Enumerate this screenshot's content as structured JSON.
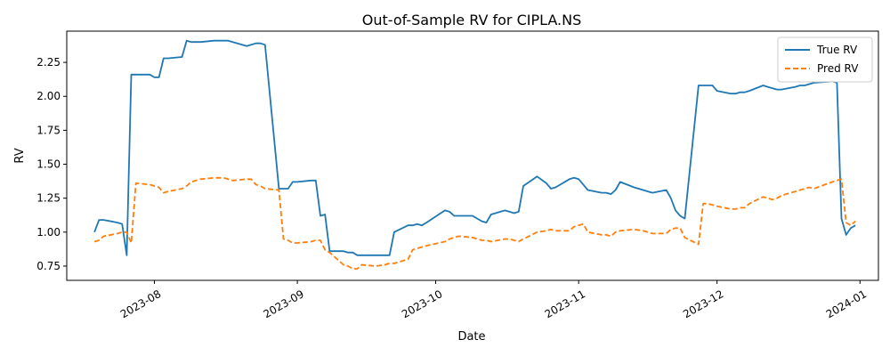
{
  "chart_data": {
    "type": "line",
    "title": "Out-of-Sample RV for CIPLA.NS",
    "xlabel": "Date",
    "ylabel": "RV",
    "xlim": [
      "2023-07-13",
      "2024-01-05"
    ],
    "ylim": [
      0.645,
      2.48
    ],
    "x_ticks": [
      {
        "date": "2023-08-01",
        "label": "2023-08"
      },
      {
        "date": "2023-09-01",
        "label": "2023-09"
      },
      {
        "date": "2023-10-01",
        "label": "2023-10"
      },
      {
        "date": "2023-11-01",
        "label": "2023-11"
      },
      {
        "date": "2023-12-01",
        "label": "2023-12"
      },
      {
        "date": "2024-01-01",
        "label": "2024-01"
      }
    ],
    "y_ticks": [
      {
        "value": 0.75,
        "label": "0.75"
      },
      {
        "value": 1.0,
        "label": "1.00"
      },
      {
        "value": 1.25,
        "label": "1.25"
      },
      {
        "value": 1.5,
        "label": "1.50"
      },
      {
        "value": 1.75,
        "label": "1.75"
      },
      {
        "value": 2.0,
        "label": "2.00"
      },
      {
        "value": 2.25,
        "label": "2.25"
      }
    ],
    "legend": {
      "position": "top-right"
    },
    "series": [
      {
        "name": "True RV",
        "color": "#1f77b4",
        "style": "solid",
        "points": [
          [
            "2023-07-19",
            1.0
          ],
          [
            "2023-07-20",
            1.09
          ],
          [
            "2023-07-21",
            1.09
          ],
          [
            "2023-07-24",
            1.07
          ],
          [
            "2023-07-25",
            1.06
          ],
          [
            "2023-07-26",
            0.83
          ],
          [
            "2023-07-27",
            2.16
          ],
          [
            "2023-07-28",
            2.16
          ],
          [
            "2023-07-31",
            2.16
          ],
          [
            "2023-08-01",
            2.14
          ],
          [
            "2023-08-02",
            2.14
          ],
          [
            "2023-08-03",
            2.28
          ],
          [
            "2023-08-04",
            2.28
          ],
          [
            "2023-08-07",
            2.29
          ],
          [
            "2023-08-08",
            2.41
          ],
          [
            "2023-08-09",
            2.4
          ],
          [
            "2023-08-10",
            2.4
          ],
          [
            "2023-08-11",
            2.4
          ],
          [
            "2023-08-14",
            2.41
          ],
          [
            "2023-08-16",
            2.41
          ],
          [
            "2023-08-17",
            2.41
          ],
          [
            "2023-08-18",
            2.4
          ],
          [
            "2023-08-21",
            2.37
          ],
          [
            "2023-08-22",
            2.38
          ],
          [
            "2023-08-23",
            2.39
          ],
          [
            "2023-08-24",
            2.39
          ],
          [
            "2023-08-25",
            2.38
          ],
          [
            "2023-08-28",
            1.32
          ],
          [
            "2023-08-29",
            1.32
          ],
          [
            "2023-08-30",
            1.32
          ],
          [
            "2023-08-31",
            1.37
          ],
          [
            "2023-09-01",
            1.37
          ],
          [
            "2023-09-04",
            1.38
          ],
          [
            "2023-09-05",
            1.38
          ],
          [
            "2023-09-06",
            1.12
          ],
          [
            "2023-09-07",
            1.13
          ],
          [
            "2023-09-08",
            0.86
          ],
          [
            "2023-09-11",
            0.86
          ],
          [
            "2023-09-12",
            0.85
          ],
          [
            "2023-09-13",
            0.85
          ],
          [
            "2023-09-14",
            0.83
          ],
          [
            "2023-09-15",
            0.83
          ],
          [
            "2023-09-18",
            0.83
          ],
          [
            "2023-09-20",
            0.83
          ],
          [
            "2023-09-21",
            0.83
          ],
          [
            "2023-09-22",
            1.0
          ],
          [
            "2023-09-25",
            1.05
          ],
          [
            "2023-09-26",
            1.05
          ],
          [
            "2023-09-27",
            1.06
          ],
          [
            "2023-09-28",
            1.05
          ],
          [
            "2023-09-29",
            1.07
          ],
          [
            "2023-10-03",
            1.16
          ],
          [
            "2023-10-04",
            1.15
          ],
          [
            "2023-10-05",
            1.12
          ],
          [
            "2023-10-06",
            1.12
          ],
          [
            "2023-10-09",
            1.12
          ],
          [
            "2023-10-10",
            1.1
          ],
          [
            "2023-10-11",
            1.08
          ],
          [
            "2023-10-12",
            1.07
          ],
          [
            "2023-10-13",
            1.13
          ],
          [
            "2023-10-16",
            1.16
          ],
          [
            "2023-10-17",
            1.15
          ],
          [
            "2023-10-18",
            1.14
          ],
          [
            "2023-10-19",
            1.15
          ],
          [
            "2023-10-20",
            1.34
          ],
          [
            "2023-10-23",
            1.41
          ],
          [
            "2023-10-25",
            1.36
          ],
          [
            "2023-10-26",
            1.32
          ],
          [
            "2023-10-27",
            1.33
          ],
          [
            "2023-10-30",
            1.39
          ],
          [
            "2023-10-31",
            1.4
          ],
          [
            "2023-11-01",
            1.39
          ],
          [
            "2023-11-02",
            1.35
          ],
          [
            "2023-11-03",
            1.31
          ],
          [
            "2023-11-06",
            1.29
          ],
          [
            "2023-11-07",
            1.29
          ],
          [
            "2023-11-08",
            1.28
          ],
          [
            "2023-11-09",
            1.31
          ],
          [
            "2023-11-10",
            1.37
          ],
          [
            "2023-11-13",
            1.33
          ],
          [
            "2023-11-15",
            1.31
          ],
          [
            "2023-11-16",
            1.3
          ],
          [
            "2023-11-17",
            1.29
          ],
          [
            "2023-11-20",
            1.31
          ],
          [
            "2023-11-21",
            1.25
          ],
          [
            "2023-11-22",
            1.16
          ],
          [
            "2023-11-23",
            1.12
          ],
          [
            "2023-11-24",
            1.1
          ],
          [
            "2023-11-27",
            2.08
          ],
          [
            "2023-11-28",
            2.08
          ],
          [
            "2023-11-29",
            2.08
          ],
          [
            "2023-11-30",
            2.08
          ],
          [
            "2023-12-01",
            2.04
          ],
          [
            "2023-12-04",
            2.02
          ],
          [
            "2023-12-05",
            2.02
          ],
          [
            "2023-12-06",
            2.03
          ],
          [
            "2023-12-07",
            2.03
          ],
          [
            "2023-12-08",
            2.04
          ],
          [
            "2023-12-11",
            2.08
          ],
          [
            "2023-12-12",
            2.07
          ],
          [
            "2023-12-13",
            2.06
          ],
          [
            "2023-12-14",
            2.05
          ],
          [
            "2023-12-15",
            2.05
          ],
          [
            "2023-12-18",
            2.07
          ],
          [
            "2023-12-19",
            2.08
          ],
          [
            "2023-12-20",
            2.08
          ],
          [
            "2023-12-21",
            2.09
          ],
          [
            "2023-12-22",
            2.1
          ],
          [
            "2023-12-26",
            2.11
          ],
          [
            "2023-12-27",
            2.1
          ],
          [
            "2023-12-28",
            1.1
          ],
          [
            "2023-12-29",
            0.98
          ],
          [
            "2023-12-30",
            1.03
          ],
          [
            "2023-12-31",
            1.05
          ]
        ]
      },
      {
        "name": "Pred RV",
        "color": "#ff7f0e",
        "style": "dashed",
        "points": [
          [
            "2023-07-19",
            0.93
          ],
          [
            "2023-07-20",
            0.94
          ],
          [
            "2023-07-21",
            0.97
          ],
          [
            "2023-07-24",
            0.99
          ],
          [
            "2023-07-25",
            1.0
          ],
          [
            "2023-07-26",
            1.0
          ],
          [
            "2023-07-27",
            0.92
          ],
          [
            "2023-07-28",
            1.36
          ],
          [
            "2023-07-31",
            1.35
          ],
          [
            "2023-08-01",
            1.34
          ],
          [
            "2023-08-02",
            1.33
          ],
          [
            "2023-08-03",
            1.29
          ],
          [
            "2023-08-04",
            1.3
          ],
          [
            "2023-08-07",
            1.32
          ],
          [
            "2023-08-08",
            1.34
          ],
          [
            "2023-08-09",
            1.37
          ],
          [
            "2023-08-10",
            1.38
          ],
          [
            "2023-08-11",
            1.39
          ],
          [
            "2023-08-14",
            1.4
          ],
          [
            "2023-08-16",
            1.4
          ],
          [
            "2023-08-17",
            1.39
          ],
          [
            "2023-08-18",
            1.38
          ],
          [
            "2023-08-21",
            1.39
          ],
          [
            "2023-08-22",
            1.39
          ],
          [
            "2023-08-23",
            1.35
          ],
          [
            "2023-08-24",
            1.34
          ],
          [
            "2023-08-25",
            1.32
          ],
          [
            "2023-08-28",
            1.31
          ],
          [
            "2023-08-29",
            0.95
          ],
          [
            "2023-08-30",
            0.94
          ],
          [
            "2023-08-31",
            0.92
          ],
          [
            "2023-09-01",
            0.92
          ],
          [
            "2023-09-04",
            0.93
          ],
          [
            "2023-09-05",
            0.94
          ],
          [
            "2023-09-06",
            0.94
          ],
          [
            "2023-09-07",
            0.87
          ],
          [
            "2023-09-08",
            0.85
          ],
          [
            "2023-09-11",
            0.76
          ],
          [
            "2023-09-12",
            0.75
          ],
          [
            "2023-09-13",
            0.73
          ],
          [
            "2023-09-14",
            0.73
          ],
          [
            "2023-09-15",
            0.76
          ],
          [
            "2023-09-18",
            0.75
          ],
          [
            "2023-09-20",
            0.76
          ],
          [
            "2023-09-21",
            0.77
          ],
          [
            "2023-09-22",
            0.77
          ],
          [
            "2023-09-25",
            0.8
          ],
          [
            "2023-09-26",
            0.87
          ],
          [
            "2023-09-27",
            0.88
          ],
          [
            "2023-09-28",
            0.89
          ],
          [
            "2023-09-29",
            0.9
          ],
          [
            "2023-10-03",
            0.93
          ],
          [
            "2023-10-04",
            0.95
          ],
          [
            "2023-10-05",
            0.96
          ],
          [
            "2023-10-06",
            0.97
          ],
          [
            "2023-10-09",
            0.96
          ],
          [
            "2023-10-10",
            0.95
          ],
          [
            "2023-10-11",
            0.94
          ],
          [
            "2023-10-12",
            0.94
          ],
          [
            "2023-10-13",
            0.93
          ],
          [
            "2023-10-16",
            0.95
          ],
          [
            "2023-10-17",
            0.95
          ],
          [
            "2023-10-18",
            0.94
          ],
          [
            "2023-10-19",
            0.93
          ],
          [
            "2023-10-20",
            0.95
          ],
          [
            "2023-10-23",
            1.0
          ],
          [
            "2023-10-25",
            1.01
          ],
          [
            "2023-10-26",
            1.02
          ],
          [
            "2023-10-27",
            1.01
          ],
          [
            "2023-10-30",
            1.01
          ],
          [
            "2023-10-31",
            1.04
          ],
          [
            "2023-11-01",
            1.05
          ],
          [
            "2023-11-02",
            1.06
          ],
          [
            "2023-11-03",
            1.0
          ],
          [
            "2023-11-06",
            0.98
          ],
          [
            "2023-11-07",
            0.98
          ],
          [
            "2023-11-08",
            0.97
          ],
          [
            "2023-11-09",
            1.0
          ],
          [
            "2023-11-10",
            1.01
          ],
          [
            "2023-11-13",
            1.02
          ],
          [
            "2023-11-15",
            1.01
          ],
          [
            "2023-11-16",
            1.0
          ],
          [
            "2023-11-17",
            0.99
          ],
          [
            "2023-11-20",
            0.99
          ],
          [
            "2023-11-21",
            1.02
          ],
          [
            "2023-11-22",
            1.03
          ],
          [
            "2023-11-23",
            1.03
          ],
          [
            "2023-11-24",
            0.96
          ],
          [
            "2023-11-27",
            0.91
          ],
          [
            "2023-11-28",
            1.21
          ],
          [
            "2023-11-29",
            1.21
          ],
          [
            "2023-11-30",
            1.2
          ],
          [
            "2023-12-01",
            1.19
          ],
          [
            "2023-12-04",
            1.17
          ],
          [
            "2023-12-05",
            1.17
          ],
          [
            "2023-12-06",
            1.18
          ],
          [
            "2023-12-07",
            1.18
          ],
          [
            "2023-12-08",
            1.21
          ],
          [
            "2023-12-11",
            1.26
          ],
          [
            "2023-12-12",
            1.25
          ],
          [
            "2023-12-13",
            1.24
          ],
          [
            "2023-12-14",
            1.25
          ],
          [
            "2023-12-15",
            1.27
          ],
          [
            "2023-12-18",
            1.3
          ],
          [
            "2023-12-19",
            1.31
          ],
          [
            "2023-12-20",
            1.32
          ],
          [
            "2023-12-21",
            1.33
          ],
          [
            "2023-12-22",
            1.32
          ],
          [
            "2023-12-26",
            1.37
          ],
          [
            "2023-12-27",
            1.38
          ],
          [
            "2023-12-28",
            1.39
          ],
          [
            "2023-12-29",
            1.07
          ],
          [
            "2023-12-30",
            1.05
          ],
          [
            "2023-12-31",
            1.08
          ]
        ]
      }
    ]
  }
}
